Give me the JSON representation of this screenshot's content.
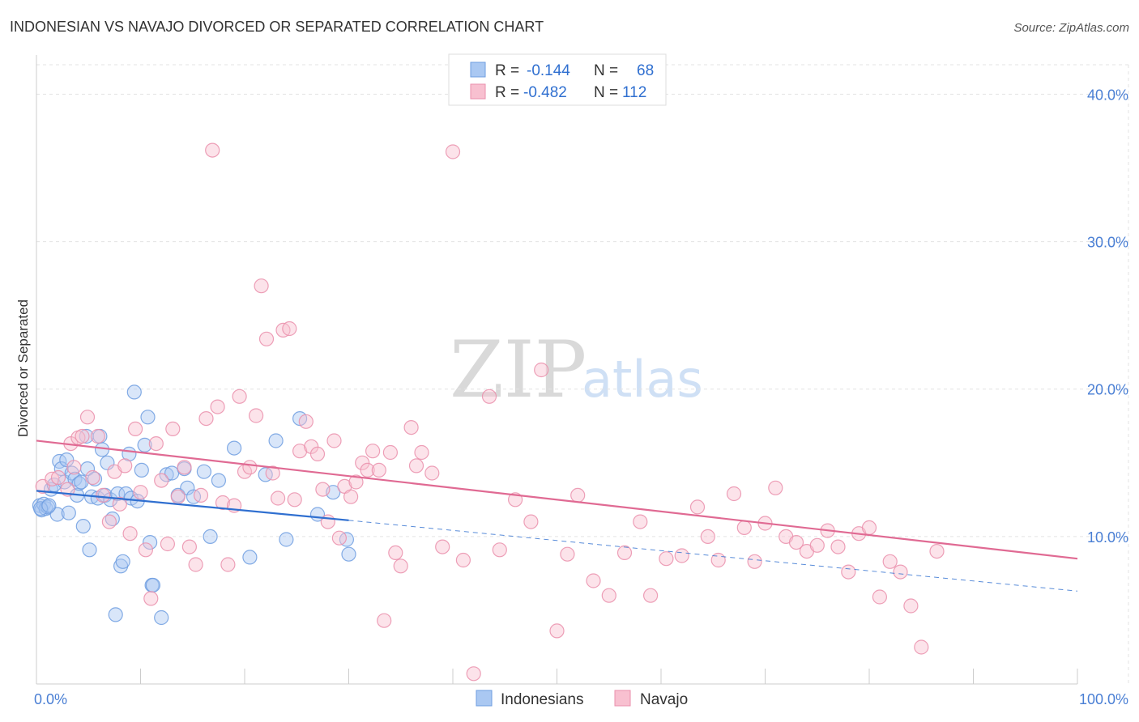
{
  "title": "INDONESIAN VS NAVAJO DIVORCED OR SEPARATED CORRELATION CHART",
  "source": "Source: ZipAtlas.com",
  "watermark": {
    "zip": "ZIP",
    "atlas": "atlas"
  },
  "legend": {
    "r_label": "R =",
    "n_label": "N =",
    "rows": [
      {
        "r": "-0.144",
        "n": "68",
        "color": "#aac8f2",
        "stroke": "#6f9ee0"
      },
      {
        "r": "-0.482",
        "n": "112",
        "color": "#f8c0d0",
        "stroke": "#ea8fac"
      }
    ]
  },
  "bottom_legend": [
    "Indonesians",
    "Navajo"
  ],
  "chart_data": {
    "type": "scatter",
    "title": "INDONESIAN VS NAVAJO DIVORCED OR SEPARATED CORRELATION CHART",
    "xlabel": "",
    "ylabel": "Divorced or Separated",
    "xlim": [
      0,
      100
    ],
    "ylim": [
      0,
      42
    ],
    "x_tick_labels": [
      "0.0%",
      "100.0%"
    ],
    "y_ticks": [
      10,
      20,
      30,
      40
    ],
    "y_tick_labels": [
      "10.0%",
      "20.0%",
      "30.0%",
      "40.0%"
    ],
    "grid": true,
    "series": [
      {
        "name": "Indonesians",
        "color": "#6f9ee0",
        "fill": "#aac8f2",
        "trend_color": "#2f6fd0",
        "trend": {
          "x0": 0,
          "y0": 13.1,
          "x1": 30,
          "y1": 11.1,
          "dashed_to_x": 100,
          "dashed_to_y": 6.3
        },
        "points": [
          [
            0.3,
            12.1
          ],
          [
            0.5,
            11.8
          ],
          [
            0.7,
            12.2
          ],
          [
            0.9,
            11.9
          ],
          [
            1.1,
            12.0
          ],
          [
            1.4,
            13.2
          ],
          [
            1.7,
            13.5
          ],
          [
            2.0,
            11.5
          ],
          [
            2.2,
            15.1
          ],
          [
            2.4,
            14.6
          ],
          [
            2.7,
            13.7
          ],
          [
            2.9,
            15.2
          ],
          [
            3.1,
            11.6
          ],
          [
            3.4,
            14.3
          ],
          [
            3.7,
            13.9
          ],
          [
            3.9,
            12.8
          ],
          [
            4.1,
            13.6
          ],
          [
            4.3,
            13.7
          ],
          [
            4.5,
            10.7
          ],
          [
            4.8,
            16.8
          ],
          [
            4.9,
            14.6
          ],
          [
            5.1,
            9.1
          ],
          [
            5.3,
            12.7
          ],
          [
            5.6,
            13.9
          ],
          [
            5.9,
            12.6
          ],
          [
            6.1,
            16.8
          ],
          [
            6.3,
            15.9
          ],
          [
            6.6,
            12.8
          ],
          [
            6.8,
            15.0
          ],
          [
            7.1,
            12.5
          ],
          [
            7.3,
            11.2
          ],
          [
            7.6,
            4.7
          ],
          [
            7.8,
            12.9
          ],
          [
            8.1,
            8.0
          ],
          [
            8.3,
            8.3
          ],
          [
            8.6,
            12.9
          ],
          [
            8.9,
            15.6
          ],
          [
            9.1,
            12.6
          ],
          [
            9.4,
            19.8
          ],
          [
            9.7,
            12.4
          ],
          [
            10.1,
            14.5
          ],
          [
            10.4,
            16.2
          ],
          [
            10.7,
            18.1
          ],
          [
            10.9,
            9.6
          ],
          [
            11.1,
            6.7
          ],
          [
            11.2,
            6.7
          ],
          [
            12.0,
            4.5
          ],
          [
            12.5,
            14.2
          ],
          [
            13.0,
            14.3
          ],
          [
            13.6,
            12.8
          ],
          [
            14.2,
            14.6
          ],
          [
            14.5,
            13.3
          ],
          [
            15.1,
            12.7
          ],
          [
            16.1,
            14.4
          ],
          [
            16.7,
            10.0
          ],
          [
            17.5,
            13.8
          ],
          [
            19.0,
            16.0
          ],
          [
            20.5,
            8.6
          ],
          [
            22.0,
            14.2
          ],
          [
            23.0,
            16.5
          ],
          [
            24.0,
            9.8
          ],
          [
            25.3,
            18.0
          ],
          [
            27.0,
            11.5
          ],
          [
            28.5,
            13.0
          ],
          [
            29.8,
            9.8
          ],
          [
            30.0,
            8.8
          ],
          [
            0.4,
            11.9
          ],
          [
            1.2,
            12.1
          ]
        ]
      },
      {
        "name": "Navajo",
        "color": "#ea8fac",
        "fill": "#f8c0d0",
        "trend_color": "#e06a93",
        "trend": {
          "x0": 0,
          "y0": 16.5,
          "x1": 100,
          "y1": 8.5
        },
        "points": [
          [
            0.6,
            13.4
          ],
          [
            1.5,
            13.9
          ],
          [
            2.1,
            14.0
          ],
          [
            3.0,
            13.2
          ],
          [
            3.3,
            16.3
          ],
          [
            3.6,
            14.7
          ],
          [
            4.0,
            16.7
          ],
          [
            4.4,
            16.8
          ],
          [
            4.9,
            18.1
          ],
          [
            5.4,
            14.0
          ],
          [
            5.9,
            16.8
          ],
          [
            6.4,
            12.8
          ],
          [
            7.0,
            11.0
          ],
          [
            7.5,
            14.4
          ],
          [
            8.0,
            12.2
          ],
          [
            8.5,
            14.8
          ],
          [
            9.0,
            10.2
          ],
          [
            9.5,
            17.3
          ],
          [
            10.0,
            13.0
          ],
          [
            10.5,
            9.1
          ],
          [
            11.0,
            5.8
          ],
          [
            11.5,
            16.3
          ],
          [
            12.0,
            13.8
          ],
          [
            12.6,
            9.5
          ],
          [
            13.1,
            17.3
          ],
          [
            13.6,
            12.7
          ],
          [
            14.2,
            14.7
          ],
          [
            14.7,
            9.3
          ],
          [
            15.3,
            8.1
          ],
          [
            15.8,
            12.8
          ],
          [
            16.3,
            18.0
          ],
          [
            16.9,
            36.2
          ],
          [
            17.4,
            18.8
          ],
          [
            17.9,
            12.3
          ],
          [
            18.4,
            8.1
          ],
          [
            19.0,
            12.1
          ],
          [
            19.5,
            19.5
          ],
          [
            20.0,
            14.4
          ],
          [
            20.5,
            14.7
          ],
          [
            21.1,
            18.2
          ],
          [
            21.6,
            27.0
          ],
          [
            22.1,
            23.4
          ],
          [
            22.7,
            14.3
          ],
          [
            23.2,
            12.6
          ],
          [
            23.7,
            24.0
          ],
          [
            24.3,
            24.1
          ],
          [
            24.8,
            12.5
          ],
          [
            25.3,
            15.8
          ],
          [
            25.9,
            17.8
          ],
          [
            26.4,
            16.1
          ],
          [
            27.0,
            15.6
          ],
          [
            27.5,
            13.2
          ],
          [
            28.0,
            11.0
          ],
          [
            28.6,
            16.5
          ],
          [
            29.1,
            9.9
          ],
          [
            29.6,
            13.4
          ],
          [
            30.2,
            12.7
          ],
          [
            30.7,
            13.7
          ],
          [
            31.3,
            15.0
          ],
          [
            31.8,
            14.5
          ],
          [
            32.3,
            15.8
          ],
          [
            32.9,
            14.5
          ],
          [
            33.4,
            4.3
          ],
          [
            34.0,
            15.7
          ],
          [
            34.5,
            8.9
          ],
          [
            35.0,
            8.0
          ],
          [
            36.0,
            17.4
          ],
          [
            36.5,
            14.8
          ],
          [
            37.0,
            15.7
          ],
          [
            38.0,
            14.3
          ],
          [
            39.0,
            9.3
          ],
          [
            40.0,
            36.1
          ],
          [
            41.0,
            8.4
          ],
          [
            42.0,
            0.7
          ],
          [
            43.5,
            19.5
          ],
          [
            44.5,
            9.1
          ],
          [
            46.0,
            12.5
          ],
          [
            47.5,
            11.0
          ],
          [
            48.5,
            21.3
          ],
          [
            50.0,
            3.6
          ],
          [
            51.0,
            8.8
          ],
          [
            52.0,
            12.8
          ],
          [
            53.5,
            7.0
          ],
          [
            55.0,
            6.0
          ],
          [
            56.5,
            8.9
          ],
          [
            58.0,
            11.0
          ],
          [
            59.0,
            6.0
          ],
          [
            60.5,
            8.5
          ],
          [
            62.0,
            8.7
          ],
          [
            63.5,
            12.0
          ],
          [
            64.5,
            10.0
          ],
          [
            65.5,
            8.4
          ],
          [
            67.0,
            12.9
          ],
          [
            68.0,
            10.6
          ],
          [
            69.0,
            8.3
          ],
          [
            70.0,
            10.9
          ],
          [
            71.0,
            13.3
          ],
          [
            72.0,
            10.0
          ],
          [
            73.0,
            9.6
          ],
          [
            74.0,
            9.0
          ],
          [
            75.0,
            9.4
          ],
          [
            76.0,
            10.4
          ],
          [
            77.0,
            9.3
          ],
          [
            78.0,
            7.6
          ],
          [
            79.0,
            10.2
          ],
          [
            80.0,
            10.6
          ],
          [
            81.0,
            5.9
          ],
          [
            82.0,
            8.3
          ],
          [
            83.0,
            7.6
          ],
          [
            84.0,
            5.3
          ],
          [
            85.0,
            2.5
          ],
          [
            86.5,
            9.0
          ]
        ]
      }
    ]
  }
}
